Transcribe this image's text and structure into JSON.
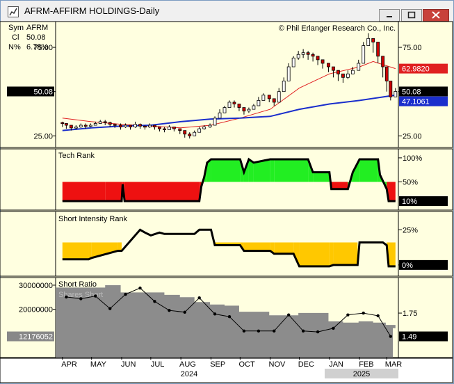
{
  "window": {
    "title": "AFRM-AFFIRM HOLDINGS-Daily",
    "copyright": "© Phil Erlanger Research Co., Inc."
  },
  "info": {
    "sym_label": "Sym",
    "sym_value": "AFRM",
    "cl_label": "Cl",
    "cl_value": "50.08",
    "pct_label": "N%",
    "pct_value": "6.78%"
  },
  "colors": {
    "panel_bg": "#ffffe0",
    "up_candle": "#ffffff",
    "down_candle": "#cc0000",
    "ma_short": "#e02020",
    "ma_long": "#1a2ecc",
    "rank_high": "#22ee22",
    "rank_low": "#ee1111",
    "si_fill": "#ffc800",
    "shares_fill": "#8c8c8c"
  },
  "chart_data": [
    {
      "type": "candlestick",
      "name": "price",
      "x": [
        "2024-04-01",
        "2024-04-05",
        "2024-04-10",
        "2024-04-15",
        "2024-04-20",
        "2024-04-25",
        "2024-04-30",
        "2024-05-05",
        "2024-05-10",
        "2024-05-15",
        "2024-05-20",
        "2024-05-25",
        "2024-05-31",
        "2024-06-05",
        "2024-06-10",
        "2024-06-15",
        "2024-06-20",
        "2024-06-25",
        "2024-06-30",
        "2024-07-05",
        "2024-07-10",
        "2024-07-15",
        "2024-07-20",
        "2024-07-25",
        "2024-07-31",
        "2024-08-05",
        "2024-08-10",
        "2024-08-15",
        "2024-08-20",
        "2024-08-25",
        "2024-08-31",
        "2024-09-05",
        "2024-09-10",
        "2024-09-15",
        "2024-09-20",
        "2024-09-25",
        "2024-09-30",
        "2024-10-05",
        "2024-10-10",
        "2024-10-15",
        "2024-10-20",
        "2024-10-25",
        "2024-10-31",
        "2024-11-05",
        "2024-11-10",
        "2024-11-15",
        "2024-11-20",
        "2024-11-25",
        "2024-11-30",
        "2024-12-05",
        "2024-12-10",
        "2024-12-15",
        "2024-12-20",
        "2024-12-25",
        "2024-12-31",
        "2025-01-05",
        "2025-01-10",
        "2025-01-15",
        "2025-01-20",
        "2025-01-25",
        "2025-01-31",
        "2025-02-05",
        "2025-02-10",
        "2025-02-15",
        "2025-02-20",
        "2025-02-25",
        "2025-03-01",
        "2025-03-05",
        "2025-03-10"
      ],
      "close": [
        32,
        31,
        29.5,
        30,
        31,
        30.5,
        31,
        32,
        33,
        32.5,
        31.5,
        31,
        30,
        31,
        30,
        31.5,
        30.5,
        30,
        31,
        30,
        29,
        28.5,
        30,
        29,
        28,
        26,
        25,
        27,
        29,
        30,
        31,
        35,
        38,
        41,
        44,
        43,
        41,
        39,
        40,
        42,
        45,
        48,
        46,
        44,
        50,
        56,
        64,
        69,
        71,
        72,
        71,
        70,
        68,
        66,
        64,
        62,
        60,
        58,
        60,
        62,
        66,
        76,
        80,
        78,
        70,
        64,
        56,
        47,
        50.08
      ],
      "high": [
        33,
        32,
        31,
        31,
        32,
        32,
        32,
        33,
        34,
        34,
        33,
        32,
        32,
        32,
        31,
        33,
        32,
        31,
        32,
        31,
        30,
        30,
        31,
        30,
        29,
        28,
        27,
        28,
        30,
        31,
        32,
        36,
        40,
        42,
        45,
        45,
        42,
        40,
        41,
        43,
        47,
        49,
        48,
        46,
        52,
        58,
        66,
        70,
        73,
        74,
        73,
        72,
        70,
        68,
        66,
        64,
        62,
        60,
        62,
        64,
        68,
        78,
        83,
        80,
        74,
        66,
        58,
        50,
        52
      ],
      "low": [
        30,
        29,
        28,
        28.5,
        29.5,
        29,
        30,
        31,
        32,
        31,
        30,
        29.5,
        28.5,
        29.5,
        28.5,
        29.5,
        29,
        28.5,
        29.5,
        28.5,
        27.5,
        27,
        28.5,
        27.5,
        26,
        24,
        23.5,
        25,
        27,
        28.5,
        29.5,
        33,
        36,
        39,
        42,
        41,
        39,
        37,
        38,
        40,
        43,
        46,
        44,
        42,
        47,
        53,
        60,
        66,
        68,
        69,
        68,
        67,
        65,
        63,
        61,
        58,
        56,
        55,
        57,
        60,
        63,
        72,
        76,
        72,
        66,
        58,
        50,
        45,
        47
      ],
      "ylim": [
        20,
        88
      ],
      "yticks": [
        25,
        50,
        75
      ],
      "ytick_labels": [
        "25.00",
        "50.08",
        "75.00"
      ]
    },
    {
      "type": "line",
      "name": "moving-averages",
      "price_label": "50.08",
      "ma_short_label": "62.9820",
      "ma_long_label": "47.1061",
      "ma_short": [
        {
          "x": "2024-04-01",
          "y": 35
        },
        {
          "x": "2024-05-01",
          "y": 33
        },
        {
          "x": "2024-06-01",
          "y": 31.5
        },
        {
          "x": "2024-07-01",
          "y": 30.5
        },
        {
          "x": "2024-08-01",
          "y": 29.5
        },
        {
          "x": "2024-09-01",
          "y": 31
        },
        {
          "x": "2024-10-01",
          "y": 35
        },
        {
          "x": "2024-11-01",
          "y": 40
        },
        {
          "x": "2024-12-01",
          "y": 52
        },
        {
          "x": "2025-01-01",
          "y": 60
        },
        {
          "x": "2025-02-01",
          "y": 64
        },
        {
          "x": "2025-02-15",
          "y": 67
        },
        {
          "x": "2025-03-10",
          "y": 63
        }
      ],
      "ma_long": [
        {
          "x": "2024-04-01",
          "y": 28
        },
        {
          "x": "2024-05-01",
          "y": 29.5
        },
        {
          "x": "2024-06-01",
          "y": 30.5
        },
        {
          "x": "2024-07-01",
          "y": 31
        },
        {
          "x": "2024-08-01",
          "y": 33
        },
        {
          "x": "2024-09-01",
          "y": 34.5
        },
        {
          "x": "2024-10-01",
          "y": 35
        },
        {
          "x": "2024-11-01",
          "y": 36
        },
        {
          "x": "2024-12-01",
          "y": 40
        },
        {
          "x": "2025-01-01",
          "y": 43
        },
        {
          "x": "2025-02-01",
          "y": 45
        },
        {
          "x": "2025-03-10",
          "y": 48
        }
      ]
    },
    {
      "type": "line",
      "name": "tech-rank",
      "title": "Tech Rank",
      "x": [
        "2024-04-01",
        "2024-05-15",
        "2024-06-01",
        "2024-06-02",
        "2024-06-04",
        "2024-08-20",
        "2024-08-22",
        "2024-08-25",
        "2024-08-28",
        "2024-09-01",
        "2024-10-01",
        "2024-10-05",
        "2024-10-10",
        "2024-10-15",
        "2024-11-01",
        "2024-11-05",
        "2024-12-10",
        "2024-12-15",
        "2025-01-01",
        "2025-01-03",
        "2025-01-20",
        "2025-01-25",
        "2025-02-01",
        "2025-02-20",
        "2025-02-22",
        "2025-03-01",
        "2025-03-03",
        "2025-03-10"
      ],
      "values": [
        10,
        10,
        10,
        45,
        10,
        10,
        40,
        60,
        90,
        97,
        97,
        70,
        97,
        90,
        97,
        97,
        97,
        70,
        70,
        35,
        35,
        70,
        97,
        97,
        65,
        35,
        10,
        10
      ],
      "threshold": 50,
      "ylim": [
        0,
        110
      ],
      "ytick_labels": [
        "100%",
        "50%"
      ],
      "current_label": "10%"
    },
    {
      "type": "line",
      "name": "short-intensity-rank",
      "title": "Short Intensity Rank",
      "x": [
        "2024-04-01",
        "2024-04-28",
        "2024-05-01",
        "2024-05-28",
        "2024-06-01",
        "2024-06-20",
        "2024-06-25",
        "2024-07-01",
        "2024-07-10",
        "2024-07-15",
        "2024-08-15",
        "2024-08-20",
        "2024-09-01",
        "2024-09-05",
        "2024-10-01",
        "2024-10-05",
        "2024-11-01",
        "2024-11-05",
        "2024-11-25",
        "2024-12-01",
        "2025-01-01",
        "2025-01-05",
        "2025-01-30",
        "2025-02-01",
        "2025-02-25",
        "2025-03-01",
        "2025-03-03",
        "2025-03-10"
      ],
      "values": [
        4,
        4,
        5,
        10,
        10,
        25,
        23,
        21,
        23,
        22,
        22,
        25,
        25,
        14,
        14,
        10,
        10,
        8,
        8,
        -1,
        -1,
        0,
        0,
        16,
        16,
        14,
        -1,
        -1
      ],
      "ylim": [
        -5,
        35
      ],
      "yticks": [
        25,
        0
      ],
      "ytick_labels": [
        "25%",
        "0%"
      ],
      "fill_level": 16
    },
    {
      "type": "bar",
      "name": "short-ratio",
      "title": "Short Ratio",
      "series_shares_name": "Shares Short",
      "shares_x": [
        "2024-03-25",
        "2024-04-30",
        "2024-05-15",
        "2024-05-31",
        "2024-06-15",
        "2024-06-30",
        "2024-07-15",
        "2024-07-31",
        "2024-08-15",
        "2024-08-31",
        "2024-09-15",
        "2024-09-30",
        "2024-10-15",
        "2024-10-31",
        "2024-11-15",
        "2024-11-30",
        "2024-12-15",
        "2024-12-31",
        "2025-01-15",
        "2025-01-31",
        "2025-02-15",
        "2025-02-28",
        "2025-03-10"
      ],
      "shares": [
        29000000,
        29000000,
        30000000,
        27000000,
        27000000,
        27000000,
        26000000,
        25000000,
        23000000,
        22000000,
        21500000,
        19000000,
        19000000,
        17500000,
        17500000,
        18500000,
        18500000,
        15000000,
        14500000,
        15000000,
        14500000,
        13500000,
        12176052
      ],
      "ratio_x": [
        "2024-04-05",
        "2024-04-20",
        "2024-05-05",
        "2024-05-20",
        "2024-06-05",
        "2024-06-20",
        "2024-07-05",
        "2024-07-20",
        "2024-08-05",
        "2024-08-20",
        "2024-09-05",
        "2024-09-20",
        "2024-10-05",
        "2024-10-20",
        "2024-11-05",
        "2024-11-20",
        "2024-12-05",
        "2024-12-20",
        "2025-01-05",
        "2025-01-20",
        "2025-02-05",
        "2025-02-20",
        "2025-03-05"
      ],
      "ratio": [
        1.93,
        1.91,
        1.94,
        1.8,
        1.96,
        2.03,
        1.88,
        1.78,
        1.76,
        1.92,
        1.74,
        1.71,
        1.55,
        1.55,
        1.55,
        1.73,
        1.55,
        1.54,
        1.58,
        1.73,
        1.75,
        1.72,
        1.49
      ],
      "shares_ylim": [
        0,
        32000000
      ],
      "ratio_ylim": [
        1.3,
        2.1
      ],
      "ytick_labels_left": [
        "30000000",
        "20000000"
      ],
      "ytick_labels_right": [
        "1.75"
      ],
      "shares_label": "12176052",
      "ratio_label": "1.49"
    }
  ],
  "x_axis": {
    "months": [
      {
        "label": "APR",
        "date": "2024-04-08"
      },
      {
        "label": "MAY",
        "date": "2024-05-08"
      },
      {
        "label": "JUN",
        "date": "2024-06-08"
      },
      {
        "label": "JUL",
        "date": "2024-07-08"
      },
      {
        "label": "AUG",
        "date": "2024-08-08"
      },
      {
        "label": "SEP",
        "date": "2024-09-08"
      },
      {
        "label": "OCT",
        "date": "2024-10-08"
      },
      {
        "label": "NOV",
        "date": "2024-11-08"
      },
      {
        "label": "DEC",
        "date": "2024-12-08"
      },
      {
        "label": "JAN",
        "date": "2025-01-08"
      },
      {
        "label": "FEB",
        "date": "2025-02-08"
      },
      {
        "label": "MAR",
        "date": "2025-03-08"
      }
    ],
    "years": [
      "2024",
      "2025"
    ]
  }
}
